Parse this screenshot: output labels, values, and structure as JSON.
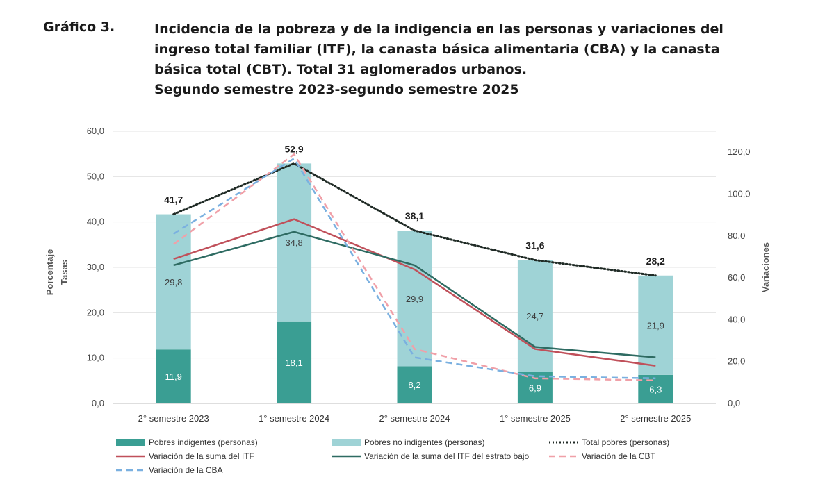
{
  "header": {
    "figure_label": "Gráfico 3.",
    "title_lines": [
      "Incidencia de la pobreza y de la indigencia en las personas y variaciones del",
      "ingreso total familiar (ITF), la canasta básica alimentaria (CBA) y la canasta",
      "básica total (CBT). Total 31 aglomerados urbanos.",
      "Segundo semestre 2023-segundo semestre 2025"
    ]
  },
  "chart_data": {
    "type": "bar",
    "stacked": true,
    "categories": [
      "2° semestre 2023",
      "1° semestre 2024",
      "2° semestre 2024",
      "1° semestre 2025",
      "2° semestre 2025"
    ],
    "y_left": {
      "label_lines": [
        "Porcentaje",
        "Tasas"
      ],
      "min": 0,
      "max": 60,
      "step": 10,
      "ticks": [
        "0,0",
        "10,0",
        "20,0",
        "30,0",
        "40,0",
        "50,0",
        "60,0"
      ]
    },
    "y_right": {
      "label": "Variaciones",
      "min": 0,
      "max": 130,
      "step": 20,
      "ticks": [
        "0,0",
        "20,0",
        "40,0",
        "60,0",
        "80,0",
        "100,0",
        "120,0"
      ]
    },
    "bar_series": [
      {
        "name": "Pobres indigentes (personas)",
        "color": "#3a9e93",
        "values": [
          11.9,
          18.1,
          8.2,
          6.9,
          6.3
        ],
        "labels": [
          "11,9",
          "18,1",
          "8,2",
          "6,9",
          "6,3"
        ]
      },
      {
        "name": "Pobres no indigentes (personas)",
        "color": "#9fd3d6",
        "values": [
          29.8,
          34.8,
          29.9,
          24.7,
          21.9
        ],
        "labels": [
          "29,8",
          "34,8",
          "29,9",
          "24,7",
          "21,9"
        ]
      }
    ],
    "totals": {
      "name": "Total pobres (personas)",
      "color": "#1f2a25",
      "values": [
        41.7,
        52.9,
        38.1,
        31.6,
        28.2
      ],
      "labels": [
        "41,7",
        "52,9",
        "38,1",
        "31,6",
        "28,2"
      ]
    },
    "line_series": [
      {
        "name": "Variación de la suma del ITF",
        "color": "#c0505a",
        "style": "solid",
        "values": [
          69,
          88,
          64,
          26,
          18
        ]
      },
      {
        "name": "Variación de la suma del ITF del estrato bajo",
        "color": "#2e6b62",
        "style": "solid",
        "values": [
          66,
          82,
          66,
          27,
          22
        ]
      },
      {
        "name": "Variación de la CBT",
        "color": "#f0a0a8",
        "style": "dashed",
        "values": [
          76,
          119,
          26,
          12,
          11
        ]
      },
      {
        "name": "Variación de la CBA",
        "color": "#7ab0e0",
        "style": "dashed",
        "values": [
          81,
          117,
          22,
          13,
          12
        ]
      }
    ],
    "legend_placement": "bottom",
    "grid": true
  }
}
